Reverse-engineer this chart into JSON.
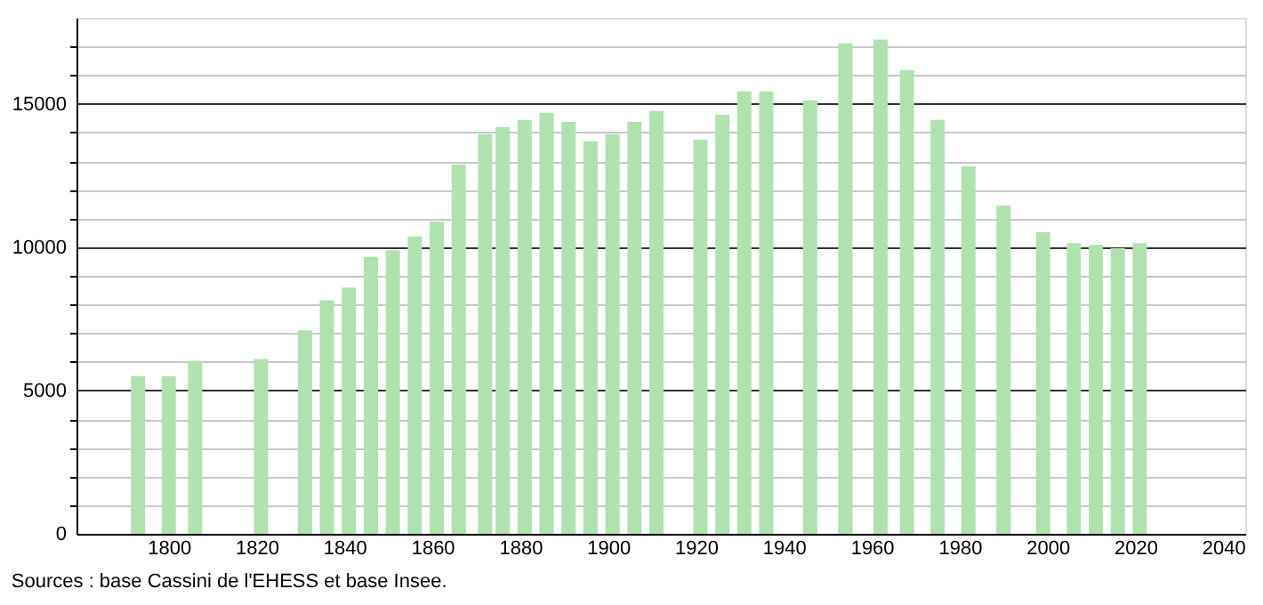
{
  "chart_data": {
    "type": "bar",
    "x": [
      1793,
      1800,
      1806,
      1821,
      1831,
      1836,
      1841,
      1846,
      1851,
      1856,
      1861,
      1866,
      1872,
      1876,
      1881,
      1886,
      1891,
      1896,
      1901,
      1906,
      1911,
      1921,
      1926,
      1931,
      1936,
      1946,
      1954,
      1962,
      1968,
      1975,
      1982,
      1990,
      1999,
      2006,
      2011,
      2016,
      2021
    ],
    "values": [
      5500,
      5500,
      6040,
      6100,
      7100,
      8150,
      8590,
      9650,
      9890,
      10370,
      10890,
      12880,
      13940,
      14190,
      14440,
      14690,
      14370,
      13690,
      13940,
      14370,
      14750,
      13750,
      14620,
      15430,
      15430,
      15120,
      17110,
      17240,
      16180,
      14440,
      12820,
      11450,
      10520,
      10140,
      10080,
      9960,
      10140
    ],
    "color": "#b0e2b0",
    "xlim": [
      1779,
      2045
    ],
    "xticks": [
      1800,
      1820,
      1840,
      1860,
      1880,
      1900,
      1920,
      1940,
      1960,
      1980,
      2000,
      2020,
      2040
    ],
    "ylim": [
      0,
      18000
    ],
    "yticks": [
      0,
      {
        "value": 1000,
        "label": null
      },
      {
        "value": 2000,
        "label": null
      },
      {
        "value": 3000,
        "label": null
      },
      {
        "value": 4000,
        "label": null
      },
      5000,
      {
        "value": 6000,
        "label": null
      },
      {
        "value": 7000,
        "label": null
      },
      {
        "value": 8000,
        "label": null
      },
      {
        "value": 9000,
        "label": null
      },
      10000,
      {
        "value": 11000,
        "label": null
      },
      {
        "value": 12000,
        "label": null
      },
      {
        "value": 13000,
        "label": null
      },
      {
        "value": 14000,
        "label": null
      },
      15000,
      {
        "value": 16000,
        "label": null
      },
      {
        "value": 17000,
        "label": null
      }
    ],
    "grid": "y",
    "annotations": [
      "Sources : base Cassini de l'EHESS et base Insee."
    ]
  }
}
